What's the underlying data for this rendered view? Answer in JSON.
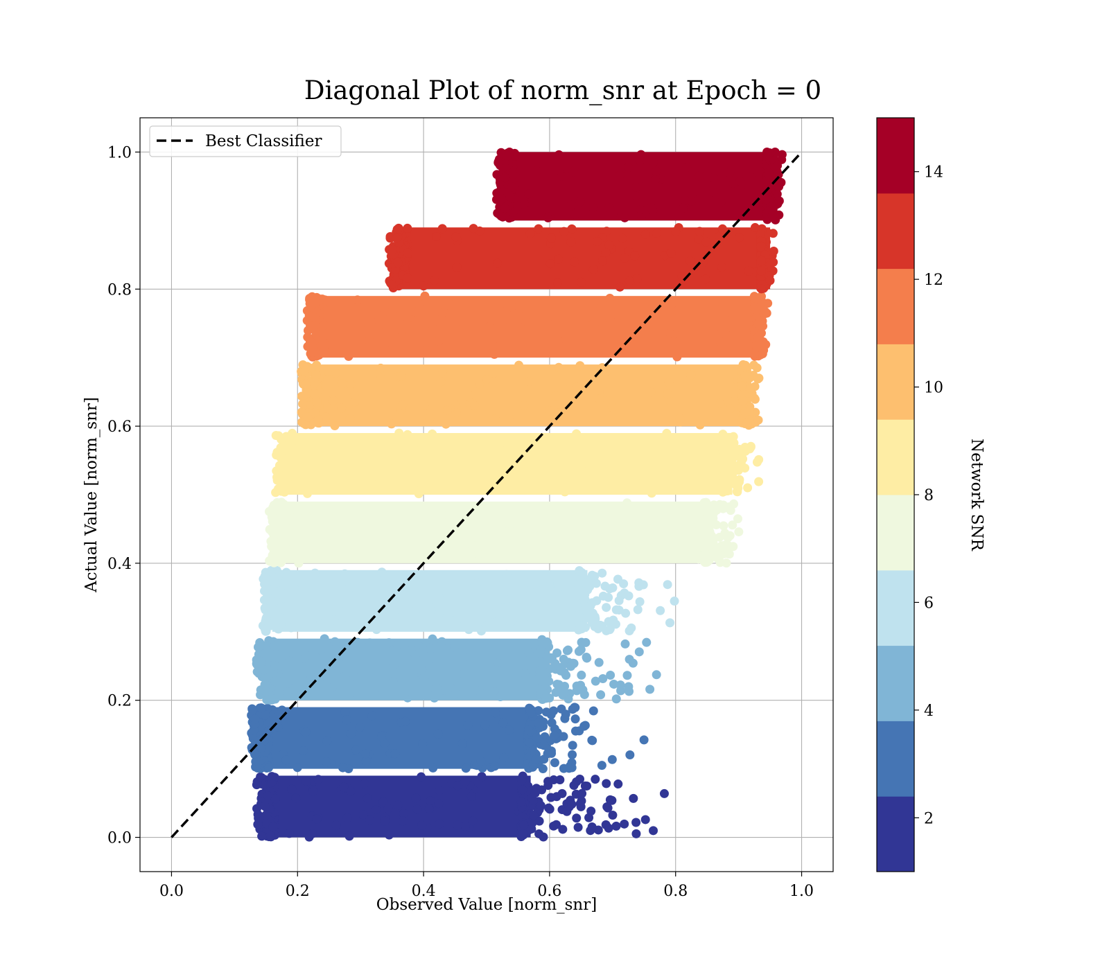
{
  "chart_data": {
    "type": "scatter",
    "title": "Diagonal Plot of norm_snr at Epoch = 0",
    "xlabel": "Observed Value [norm_snr]",
    "ylabel": "Actual Value [norm_snr]",
    "xlim": [
      -0.05,
      1.05
    ],
    "ylim": [
      -0.05,
      1.05
    ],
    "x_ticks": [
      0.0,
      0.2,
      0.4,
      0.6,
      0.8,
      1.0
    ],
    "y_ticks": [
      0.0,
      0.2,
      0.4,
      0.6,
      0.8,
      1.0
    ],
    "x_tick_labels": [
      "0.0",
      "0.2",
      "0.4",
      "0.6",
      "0.8",
      "1.0"
    ],
    "y_tick_labels": [
      "0.0",
      "0.2",
      "0.4",
      "0.6",
      "0.8",
      "1.0"
    ],
    "grid": true,
    "legend": {
      "placement": "top-left",
      "entries": [
        {
          "label": "Best Classifier",
          "style": "dashed",
          "color": "#000000"
        }
      ]
    },
    "reference_line": {
      "label": "Best Classifier",
      "x": [
        0.0,
        1.0
      ],
      "y": [
        0.0,
        1.0
      ]
    },
    "colorbar": {
      "label": "Network SNR",
      "range": [
        1,
        15
      ],
      "ticks": [
        2,
        4,
        6,
        8,
        10,
        12,
        14
      ],
      "tick_labels": [
        "2",
        "4",
        "6",
        "8",
        "10",
        "12",
        "14"
      ],
      "colors": [
        "#313695",
        "#4575b4",
        "#80b5d6",
        "#bfe2ee",
        "#eff8df",
        "#feeda4",
        "#fdbf6f",
        "#f47e4c",
        "#d73529",
        "#a50026"
      ]
    },
    "bands": [
      {
        "snr_class": 1,
        "y_range": [
          0.0,
          0.09
        ],
        "x_core": [
          0.15,
          0.57
        ],
        "x_tail_max": 0.79
      },
      {
        "snr_class": 2,
        "y_range": [
          0.1,
          0.19
        ],
        "x_core": [
          0.14,
          0.58
        ],
        "x_tail_max": 0.76
      },
      {
        "snr_class": 3,
        "y_range": [
          0.2,
          0.29
        ],
        "x_core": [
          0.15,
          0.6
        ],
        "x_tail_max": 0.8
      },
      {
        "snr_class": 4,
        "y_range": [
          0.3,
          0.39
        ],
        "x_core": [
          0.16,
          0.66
        ],
        "x_tail_max": 0.83
      },
      {
        "snr_class": 5,
        "y_range": [
          0.4,
          0.49
        ],
        "x_core": [
          0.17,
          0.86
        ],
        "x_tail_max": 0.91
      },
      {
        "snr_class": 6,
        "y_range": [
          0.5,
          0.59
        ],
        "x_core": [
          0.18,
          0.89
        ],
        "x_tail_max": 0.94
      },
      {
        "snr_class": 7,
        "y_range": [
          0.6,
          0.69
        ],
        "x_core": [
          0.22,
          0.92
        ],
        "x_tail_max": 0.94
      },
      {
        "snr_class": 8,
        "y_range": [
          0.7,
          0.79
        ],
        "x_core": [
          0.23,
          0.94
        ],
        "x_tail_max": 0.95
      },
      {
        "snr_class": 9,
        "y_range": [
          0.8,
          0.89
        ],
        "x_core": [
          0.36,
          0.95
        ],
        "x_tail_max": 0.96
      },
      {
        "snr_class": 10,
        "y_range": [
          0.9,
          1.0
        ],
        "x_core": [
          0.53,
          0.96
        ],
        "x_tail_max": 0.97
      }
    ]
  }
}
